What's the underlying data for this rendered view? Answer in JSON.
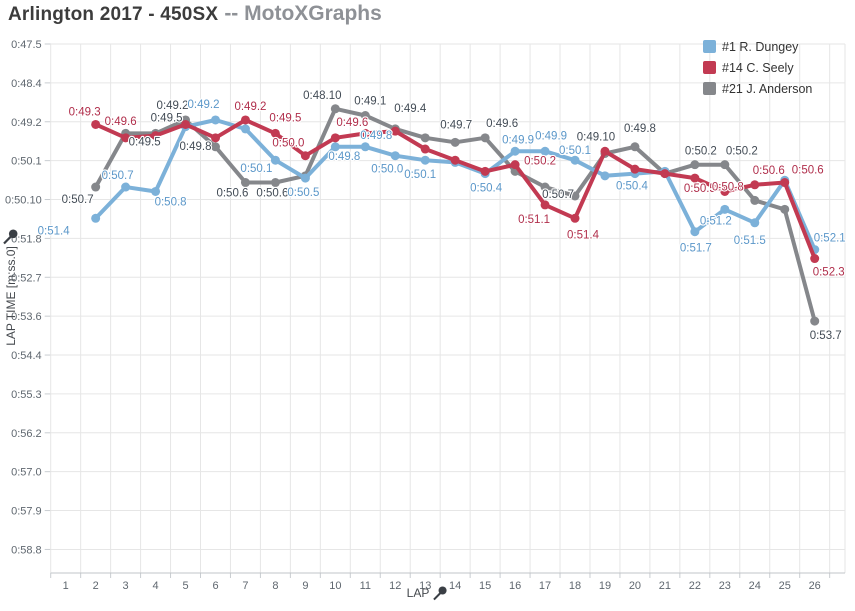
{
  "title": {
    "main": "Arlington 2017 - 450SX",
    "suffix": "-- MotoXGraphs"
  },
  "legend": {
    "position": "top-right",
    "items": [
      {
        "label": "#1 R. Dungey",
        "color": "#7cb1d9"
      },
      {
        "label": "#14 C. Seely",
        "color": "#c23a52"
      },
      {
        "label": "#21 J. Anderson",
        "color": "#85878b"
      }
    ]
  },
  "chart_data": {
    "type": "line",
    "title": "Arlington 2017 - 450SX -- MotoXGraphs",
    "xlabel": "LAP",
    "ylabel": "LAP TIME [m:ss.0]",
    "grid": true,
    "x_categories": [
      1,
      2,
      3,
      4,
      5,
      6,
      7,
      8,
      9,
      10,
      11,
      12,
      13,
      14,
      15,
      16,
      17,
      18,
      19,
      20,
      21,
      22,
      23,
      24,
      25,
      26
    ],
    "y_ticks": [
      "0:47.5",
      "0:48.4",
      "0:49.2",
      "0:50.1",
      "0:50.10",
      "0:51.8",
      "0:52.7",
      "0:53.6",
      "0:54.4",
      "0:55.3",
      "0:56.2",
      "0:57.0",
      "0:57.9",
      "0:58.8"
    ],
    "y_axis": {
      "top_tick_seconds": 47.5,
      "seconds_per_tick": 0.87,
      "inverted": true
    },
    "series": [
      {
        "name": "#1 R. Dungey",
        "color": "#7cb1d9",
        "label_color": "#5b97c9",
        "points": [
          {
            "lap": 2,
            "sec": 51.4,
            "label": "0:51.4",
            "dx": -42,
            "dy": 12
          },
          {
            "lap": 3,
            "sec": 50.7,
            "label": "0:50.7",
            "dx": -8,
            "dy": -12
          },
          {
            "lap": 4,
            "sec": 50.8,
            "label": "0:50.8",
            "dx": 15,
            "dy": 10
          },
          {
            "lap": 5,
            "sec": 49.35
          },
          {
            "lap": 6,
            "sec": 49.2,
            "label": "0:49.2",
            "dx": -12,
            "dy": -16
          },
          {
            "lap": 7,
            "sec": 49.4
          },
          {
            "lap": 8,
            "sec": 50.1,
            "label": "0:50.1",
            "dx": -19,
            "dy": 8
          },
          {
            "lap": 9,
            "sec": 50.5,
            "label": "0:50.5",
            "dx": -2,
            "dy": 14
          },
          {
            "lap": 10,
            "sec": 49.8,
            "label": "0:49.8",
            "dx": 9,
            "dy": 9
          },
          {
            "lap": 11,
            "sec": 49.8,
            "label": "0:49.8",
            "dx": 11,
            "dy": -12
          },
          {
            "lap": 12,
            "sec": 50.0,
            "label": "0:50.0",
            "dx": -8,
            "dy": 13
          },
          {
            "lap": 13,
            "sec": 50.1,
            "label": "0:50.1",
            "dx": -5,
            "dy": 14
          },
          {
            "lap": 14,
            "sec": 50.15
          },
          {
            "lap": 15,
            "sec": 50.4,
            "label": "0:50.4",
            "dx": 1,
            "dy": 14
          },
          {
            "lap": 16,
            "sec": 49.9,
            "label": "0:49.9",
            "dx": 3,
            "dy": -12
          },
          {
            "lap": 17,
            "sec": 49.9,
            "label": "0:49.9",
            "dx": 6,
            "dy": -16
          },
          {
            "lap": 18,
            "sec": 50.1,
            "label": "0:50.1",
            "dx": 0,
            "dy": -10
          },
          {
            "lap": 19,
            "sec": 50.45
          },
          {
            "lap": 20,
            "sec": 50.4,
            "label": "0:50.4",
            "dx": -3,
            "dy": 12
          },
          {
            "lap": 21,
            "sec": 50.35
          },
          {
            "lap": 22,
            "sec": 51.7,
            "label": "0:51.7",
            "dx": 1,
            "dy": 16
          },
          {
            "lap": 23,
            "sec": 51.2,
            "label": "0:51.2",
            "dx": -9,
            "dy": 11
          },
          {
            "lap": 24,
            "sec": 51.5,
            "label": "0:51.5",
            "dx": -5,
            "dy": 17
          },
          {
            "lap": 25,
            "sec": 50.55
          },
          {
            "lap": 26,
            "sec": 52.1,
            "label": "0:52.1",
            "dx": 15,
            "dy": -12
          }
        ]
      },
      {
        "name": "#14 C. Seely",
        "color": "#c23a52",
        "label_color": "#b02e4b",
        "points": [
          {
            "lap": 2,
            "sec": 49.3,
            "label": "0:49.3",
            "dx": -11,
            "dy": -13
          },
          {
            "lap": 3,
            "sec": 49.6,
            "label": "0:49.6",
            "dx": -5,
            "dy": -17
          },
          {
            "lap": 4,
            "sec": 49.55
          },
          {
            "lap": 5,
            "sec": 49.3
          },
          {
            "lap": 6,
            "sec": 49.6
          },
          {
            "lap": 7,
            "sec": 49.2,
            "label": "0:49.2",
            "dx": 5,
            "dy": -14
          },
          {
            "lap": 8,
            "sec": 49.5,
            "label": "0:49.5",
            "dx": 10,
            "dy": -16
          },
          {
            "lap": 9,
            "sec": 50.0,
            "label": "0:50.0",
            "dx": -17,
            "dy": -13
          },
          {
            "lap": 10,
            "sec": 49.6,
            "label": "0:49.6",
            "dx": 17,
            "dy": -16
          },
          {
            "lap": 11,
            "sec": 49.5
          },
          {
            "lap": 12,
            "sec": 49.45
          },
          {
            "lap": 13,
            "sec": 49.85
          },
          {
            "lap": 14,
            "sec": 50.1
          },
          {
            "lap": 15,
            "sec": 50.35
          },
          {
            "lap": 16,
            "sec": 50.2,
            "label": "0:50.2",
            "dx": 25,
            "dy": -4
          },
          {
            "lap": 17,
            "sec": 51.1,
            "label": "0:51.1",
            "dx": -11,
            "dy": 14
          },
          {
            "lap": 18,
            "sec": 51.4,
            "label": "0:51.4",
            "dx": 8,
            "dy": 16
          },
          {
            "lap": 19,
            "sec": 49.9
          },
          {
            "lap": 20,
            "sec": 50.3
          },
          {
            "lap": 21,
            "sec": 50.4
          },
          {
            "lap": 22,
            "sec": 50.5,
            "label": "0:50.5",
            "dx": 5,
            "dy": 10
          },
          {
            "lap": 23,
            "sec": 50.8,
            "label": "0:50.8",
            "dx": 3,
            "dy": -5
          },
          {
            "lap": 24,
            "sec": 50.65,
            "label": "0:50.6",
            "dx": 14,
            "dy": -15
          },
          {
            "lap": 25,
            "sec": 50.6,
            "label": "0:50.6",
            "dx": 23,
            "dy": -13
          },
          {
            "lap": 26,
            "sec": 52.3,
            "label": "0:52.3",
            "dx": 14,
            "dy": 13
          }
        ]
      },
      {
        "name": "#21 J. Anderson",
        "color": "#85878b",
        "label_color": "#424b55",
        "points": [
          {
            "lap": 2,
            "sec": 50.7,
            "label": "0:50.7",
            "dx": -18,
            "dy": 12
          },
          {
            "lap": 3,
            "sec": 49.5,
            "label": "0:49.5",
            "dx": 19,
            "dy": 8
          },
          {
            "lap": 4,
            "sec": 49.5,
            "label": "0:49.5",
            "dx": 11,
            "dy": -16
          },
          {
            "lap": 5,
            "sec": 49.2,
            "label": "0:49.2",
            "dx": -13,
            "dy": -15
          },
          {
            "lap": 6,
            "sec": 49.8,
            "label": "0:49.8",
            "dx": -20,
            "dy": -1
          },
          {
            "lap": 7,
            "sec": 50.6,
            "label": "0:50.6",
            "dx": -13,
            "dy": 10
          },
          {
            "lap": 8,
            "sec": 50.6,
            "label": "0:50.6",
            "dx": -3,
            "dy": 10
          },
          {
            "lap": 9,
            "sec": 50.45
          },
          {
            "lap": 10,
            "sec": 48.95,
            "label": "0:48.10",
            "dx": -13,
            "dy": -14
          },
          {
            "lap": 11,
            "sec": 49.1,
            "label": "0:49.1",
            "dx": 5,
            "dy": -15
          },
          {
            "lap": 12,
            "sec": 49.4,
            "label": "0:49.4",
            "dx": 15,
            "dy": -21
          },
          {
            "lap": 13,
            "sec": 49.6
          },
          {
            "lap": 14,
            "sec": 49.7,
            "label": "0:49.7",
            "dx": 1,
            "dy": -18
          },
          {
            "lap": 15,
            "sec": 49.6,
            "label": "0:49.6",
            "dx": 17,
            "dy": -15
          },
          {
            "lap": 16,
            "sec": 50.35
          },
          {
            "lap": 17,
            "sec": 50.7,
            "label": "0:50.7",
            "dx": 13,
            "dy": 7
          },
          {
            "lap": 18,
            "sec": 50.9
          },
          {
            "lap": 19,
            "sec": 49.95,
            "label": "0:49.10",
            "dx": -9,
            "dy": -17
          },
          {
            "lap": 20,
            "sec": 49.8,
            "label": "0:49.8",
            "dx": 5,
            "dy": -19
          },
          {
            "lap": 21,
            "sec": 50.4
          },
          {
            "lap": 22,
            "sec": 50.2,
            "label": "0:50.2",
            "dx": 6,
            "dy": -14
          },
          {
            "lap": 23,
            "sec": 50.2,
            "label": "0:50.2",
            "dx": 17,
            "dy": -14
          },
          {
            "lap": 24,
            "sec": 51.0
          },
          {
            "lap": 25,
            "sec": 51.2
          },
          {
            "lap": 26,
            "sec": 53.7,
            "label": "0:53.7",
            "dx": 11,
            "dy": 14
          }
        ]
      }
    ]
  }
}
